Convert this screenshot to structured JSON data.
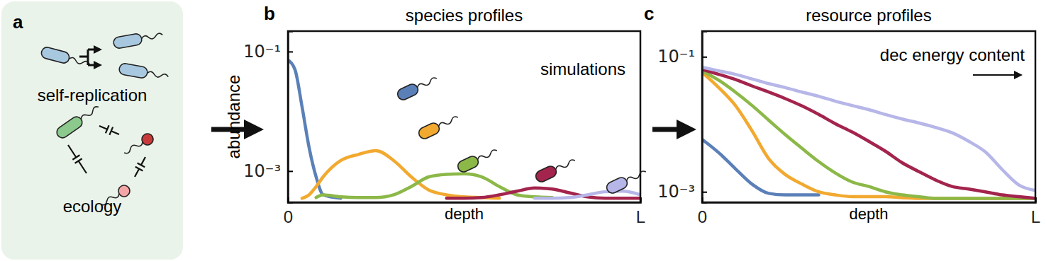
{
  "diagram": {
    "label": "a",
    "texts": [
      "self-replication",
      "ecology"
    ],
    "color": "#a8c8e0"
  },
  "chart_data": [
    {
      "type": "line",
      "label": "b",
      "title": "species profiles",
      "x_label": "depth",
      "y_label": "abundance",
      "annotations": [
        "simulations"
      ],
      "log": "y",
      "xlim": [
        0,
        1
      ],
      "xticks": [
        0,
        {
          "value": 1,
          "label": "L"
        }
      ],
      "ylim": [
        0.0003,
        0.22
      ],
      "yticks": [
        {
          "value": 0.1,
          "label": "10⁻¹"
        },
        {
          "value": 0.001,
          "label": "10⁻³"
        }
      ],
      "x": [
        0,
        0.02,
        0.04,
        0.06,
        0.08,
        0.1,
        0.15,
        0.2,
        0.25,
        0.3,
        0.35,
        0.4,
        0.45,
        0.5,
        0.55,
        0.6,
        0.65,
        0.7,
        0.75,
        0.8,
        0.85,
        0.9,
        0.95,
        1
      ],
      "series": [
        {
          "color": "#5b80b8",
          "values": [
            0.072,
            0.05,
            0.012,
            0.0025,
            0.0008,
            0.0004,
            0.00035,
            null,
            null,
            null,
            null,
            null,
            null,
            null,
            null,
            null,
            null,
            null,
            null,
            null,
            null,
            null,
            null,
            null
          ]
        },
        {
          "color": "#f2a930",
          "values": [
            null,
            null,
            0.00035,
            0.0004,
            0.00055,
            0.0008,
            0.0015,
            0.0019,
            0.0022,
            0.0015,
            0.0008,
            0.00048,
            0.0004,
            0.00037,
            0.00036,
            0.00035,
            null,
            null,
            null,
            null,
            null,
            null,
            null,
            null
          ]
        },
        {
          "color": "#8cb848",
          "values": [
            null,
            null,
            null,
            null,
            0.00036,
            0.0004,
            0.00037,
            0.00036,
            0.00036,
            0.0004,
            0.00055,
            0.0008,
            0.00088,
            0.0009,
            0.0008,
            0.00055,
            0.0004,
            0.00037,
            0.00036,
            null,
            null,
            null,
            null,
            null
          ]
        },
        {
          "color": "#a3244c",
          "values": [
            null,
            null,
            null,
            null,
            null,
            null,
            null,
            null,
            null,
            null,
            null,
            null,
            0.00035,
            0.00035,
            0.00036,
            0.0004,
            0.00046,
            0.00052,
            0.0005,
            0.00043,
            0.00037,
            0.00035,
            0.00035,
            0.00035
          ]
        },
        {
          "color": "#b6b6e8",
          "values": [
            null,
            null,
            null,
            null,
            null,
            null,
            null,
            null,
            null,
            null,
            null,
            null,
            null,
            null,
            null,
            null,
            null,
            0.00035,
            0.00035,
            0.00036,
            0.0004,
            0.00045,
            0.00046,
            0.0004
          ]
        }
      ]
    },
    {
      "type": "line",
      "label": "c",
      "title": "resource profiles",
      "x_label": "depth",
      "annotations": [
        "dec energy content"
      ],
      "log": "y",
      "xlim": [
        0,
        1
      ],
      "xticks": [
        0,
        {
          "value": 1,
          "label": "L"
        }
      ],
      "ylim": [
        0.0007,
        0.24
      ],
      "yticks": [
        {
          "value": 0.1,
          "label": "10⁻¹"
        },
        {
          "value": 0.001,
          "label": "10⁻³"
        }
      ],
      "x": [
        0,
        0.05,
        0.1,
        0.15,
        0.2,
        0.25,
        0.3,
        0.35,
        0.4,
        0.45,
        0.5,
        0.55,
        0.6,
        0.65,
        0.7,
        0.75,
        0.8,
        0.85,
        0.9,
        0.95,
        1
      ],
      "series": [
        {
          "color": "#5b80b8",
          "values": [
            0.006,
            0.0038,
            0.0022,
            0.0013,
            0.00095,
            0.0009,
            0.0009,
            0.0009,
            null,
            null,
            null,
            null,
            null,
            null,
            null,
            null,
            null,
            null,
            null,
            null,
            null
          ]
        },
        {
          "color": "#f2a930",
          "values": [
            0.059,
            0.035,
            0.019,
            0.008,
            0.0031,
            0.0018,
            0.0013,
            0.001,
            0.0009,
            0.00085,
            0.00085,
            0.00085,
            0.00082,
            0.0008,
            0.0008,
            0.0008,
            0.0008,
            0.0008,
            0.0008,
            0.0008,
            0.0008
          ]
        },
        {
          "color": "#8cb848",
          "values": [
            0.062,
            0.045,
            0.03,
            0.019,
            0.0115,
            0.007,
            0.0044,
            0.0028,
            0.0019,
            0.0014,
            0.0012,
            0.001,
            0.0009,
            0.00085,
            0.0008,
            0.0008,
            0.0008,
            0.0008,
            0.0008,
            0.0008,
            0.0008
          ]
        },
        {
          "color": "#a3244c",
          "values": [
            0.065,
            0.055,
            0.046,
            0.037,
            0.03,
            0.024,
            0.0187,
            0.014,
            0.0102,
            0.0077,
            0.0056,
            0.004,
            0.0027,
            0.002,
            0.0015,
            0.0012,
            0.0011,
            0.001,
            0.0009,
            0.00085,
            0.0008
          ]
        },
        {
          "color": "#b6b6e8",
          "values": [
            0.07,
            0.062,
            0.055,
            0.047,
            0.04,
            0.035,
            0.03,
            0.026,
            0.022,
            0.019,
            0.0165,
            0.014,
            0.012,
            0.0105,
            0.009,
            0.0075,
            0.0056,
            0.0039,
            0.00215,
            0.00127,
            0.00105
          ]
        }
      ]
    }
  ]
}
